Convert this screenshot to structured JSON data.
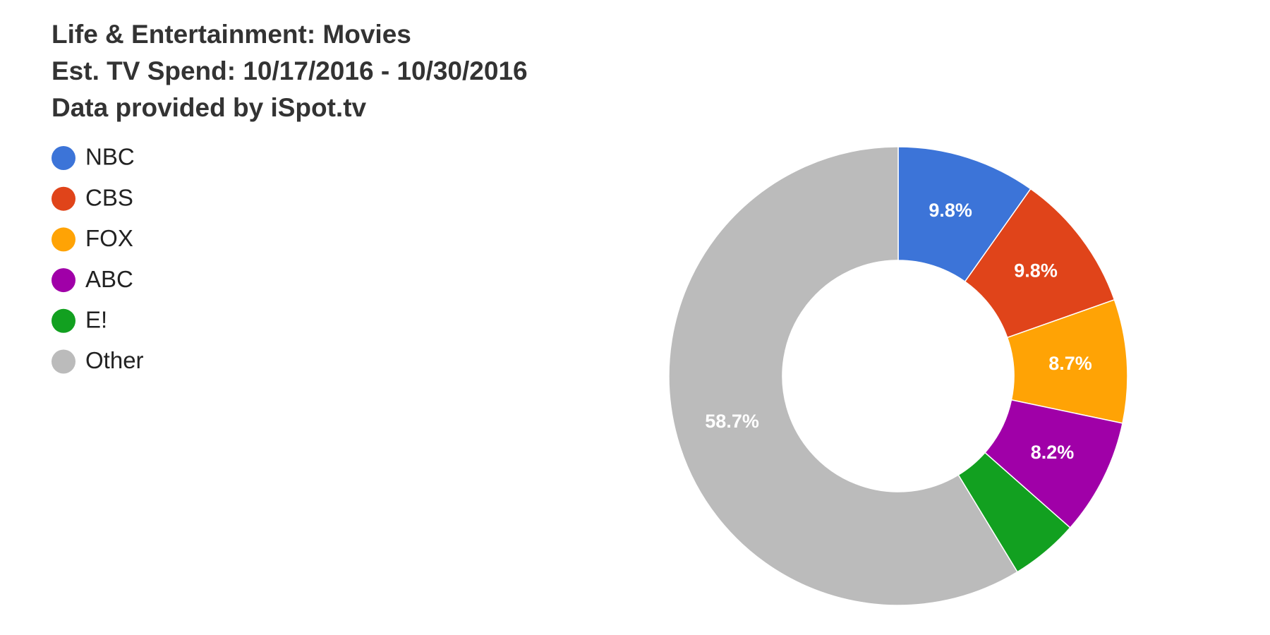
{
  "chart_data": {
    "type": "donut",
    "title": "Life & Entertainment: Movies",
    "subtitle": "Est. TV Spend: 10/17/2016 - 10/30/2016",
    "note": "Data provided by iSpot.tv",
    "categories": [
      "NBC",
      "CBS",
      "FOX",
      "ABC",
      "E!",
      "Other"
    ],
    "values": [
      9.8,
      9.8,
      8.7,
      8.2,
      4.8,
      58.7
    ],
    "value_labels": [
      "9.8%",
      "9.8%",
      "8.7%",
      "8.2%",
      null,
      "58.7%"
    ],
    "colors": [
      "#3c74d8",
      "#e0441a",
      "#ffa305",
      "#a000a8",
      "#12a020",
      "#bbbbbb"
    ],
    "legend": "left"
  }
}
